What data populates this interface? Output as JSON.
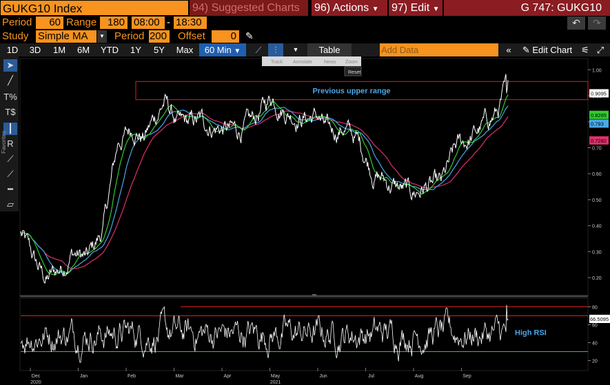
{
  "title_bar": {
    "ticker": "GUKG10 Index",
    "suggested_num": "94)",
    "suggested_label": "Suggested Charts",
    "actions_num": "96)",
    "actions_label": "Actions",
    "edit_num": "97)",
    "edit_label": "Edit",
    "page_title": "G 747: GUKG10"
  },
  "params": {
    "period_label": "Period",
    "period_value": "60",
    "range_label": "Range",
    "range_value": "180",
    "time_start": "08:00",
    "time_sep": "-",
    "time_end": "18:30",
    "study_label": "Study",
    "study_value": "Simple MA",
    "study_period_label": "Period",
    "study_period_value": "200",
    "offset_label": "Offset",
    "offset_value": "0"
  },
  "toolbar": {
    "ranges": [
      "1D",
      "3D",
      "1M",
      "6M",
      "YTD",
      "1Y",
      "5Y",
      "Max"
    ],
    "interval": "60 Min",
    "table_label": "Table",
    "add_data_placeholder": "Add Data",
    "edit_chart_label": "Edit Chart"
  },
  "chart_toolbar": {
    "track": "Track",
    "annotate": "Annotate",
    "news": "News",
    "zoom": "Zoom",
    "reset": "Reset"
  },
  "side_label": "Favorites",
  "colors": {
    "orange": "#f7931e",
    "price": "#ffffff",
    "ma_short": "#2ecc2e",
    "ma_mid": "#4aa8e8",
    "ma_long": "#e0306a",
    "range_box": "#e02020"
  },
  "chart_data": {
    "type": "line",
    "x_labels": [
      "Dec",
      "Jan",
      "Feb",
      "Mar",
      "Apr",
      "May",
      "Jun",
      "Jul",
      "Aug",
      "Sep"
    ],
    "x_year_labels": [
      {
        "label": "2020",
        "under": "Dec"
      },
      {
        "label": "2021",
        "under": "May"
      }
    ],
    "price_axis": {
      "ticks": [
        1.0,
        0.9,
        0.8,
        0.7,
        0.6,
        0.5,
        0.4,
        0.3,
        0.2
      ],
      "min": 0.15,
      "max": 1.03
    },
    "price_tags": [
      {
        "label": "0.9095",
        "value": 0.9095,
        "color": "#ffffff",
        "text": "#000"
      },
      {
        "label": "0.8265",
        "value": 0.8265,
        "color": "#2ecc2e",
        "text": "#000"
      },
      {
        "label": "0.793",
        "value": 0.793,
        "color": "#4aa8e8",
        "text": "#000"
      },
      {
        "label": "0.7282",
        "value": 0.7282,
        "color": "#e0306a",
        "text": "#000"
      }
    ],
    "annotation_range": {
      "label": "Previous upper range",
      "top": 0.955,
      "bottom": 0.885
    },
    "price_keypoints": [
      [
        0,
        0.37
      ],
      [
        0.03,
        0.25
      ],
      [
        0.05,
        0.19
      ],
      [
        0.08,
        0.24
      ],
      [
        0.1,
        0.3
      ],
      [
        0.13,
        0.27
      ],
      [
        0.16,
        0.38
      ],
      [
        0.19,
        0.72
      ],
      [
        0.22,
        0.78
      ],
      [
        0.24,
        0.74
      ],
      [
        0.28,
        0.88
      ],
      [
        0.31,
        0.78
      ],
      [
        0.35,
        0.8
      ],
      [
        0.38,
        0.78
      ],
      [
        0.42,
        0.76
      ],
      [
        0.45,
        0.79
      ],
      [
        0.49,
        0.9
      ],
      [
        0.52,
        0.84
      ],
      [
        0.55,
        0.82
      ],
      [
        0.58,
        0.82
      ],
      [
        0.6,
        0.75
      ],
      [
        0.63,
        0.78
      ],
      [
        0.66,
        0.72
      ],
      [
        0.69,
        0.6
      ],
      [
        0.72,
        0.56
      ],
      [
        0.74,
        0.54
      ],
      [
        0.76,
        0.52
      ],
      [
        0.79,
        0.55
      ],
      [
        0.82,
        0.55
      ],
      [
        0.85,
        0.7
      ],
      [
        0.88,
        0.74
      ],
      [
        0.91,
        0.8
      ],
      [
        0.93,
        0.84
      ],
      [
        0.945,
        0.91
      ],
      [
        0.95,
        0.96
      ]
    ],
    "rsi_axis": {
      "ticks": [
        80,
        60,
        40,
        20
      ],
      "min": 12,
      "max": 88
    },
    "rsi_levels": {
      "upper": 70,
      "lower": 30,
      "upper_max_line": 80
    },
    "rsi_tag": {
      "label": "66.5095",
      "value": 66.5095
    },
    "rsi_annotation": "High RSI"
  }
}
